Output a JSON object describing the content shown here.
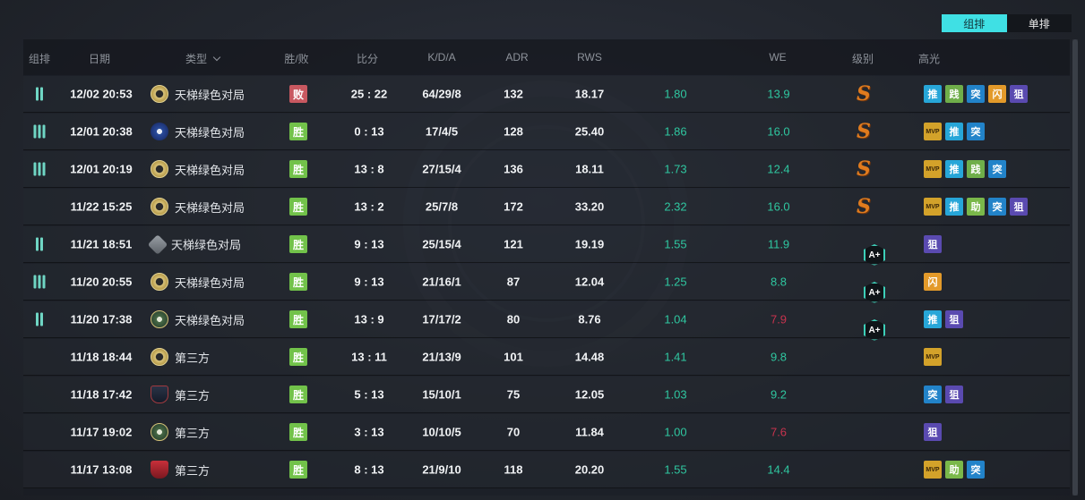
{
  "mode_toggle": {
    "team": "组排",
    "solo": "单排",
    "active": "team"
  },
  "headers": {
    "group": "组排",
    "date": "日期",
    "type": "类型",
    "result": "胜/败",
    "score": "比分",
    "kda": "K/D/A",
    "adr": "ADR",
    "rws": "RWS",
    "rating": "",
    "we": "WE",
    "rank": "级别",
    "highlights": "高光"
  },
  "icon_map": {
    "push": "推",
    "ace": "践",
    "assault": "突",
    "flash": "闪",
    "snipe": "狙",
    "assist": "助",
    "mvp": "MVP"
  },
  "matches": [
    {
      "group_bars": 2,
      "date": "12/02 20:53",
      "emblem": "gold",
      "type": "天梯绿色对局",
      "result": "败",
      "win": false,
      "score": "25 : 22",
      "kda": "64/29/8",
      "adr": "132",
      "rws": "18.17",
      "rating": "1.80",
      "we": "13.9",
      "we_low": false,
      "rank": "S",
      "highlights": [
        "push",
        "ace",
        "assault",
        "flash",
        "snipe"
      ]
    },
    {
      "group_bars": 3,
      "date": "12/01 20:38",
      "emblem": "blue",
      "type": "天梯绿色对局",
      "result": "胜",
      "win": true,
      "score": "0 : 13",
      "kda": "17/4/5",
      "adr": "128",
      "rws": "25.40",
      "rating": "1.86",
      "we": "16.0",
      "we_low": false,
      "rank": "S",
      "highlights": [
        "mvp",
        "push",
        "assault"
      ]
    },
    {
      "group_bars": 3,
      "date": "12/01 20:19",
      "emblem": "gold",
      "type": "天梯绿色对局",
      "result": "胜",
      "win": true,
      "score": "13 : 8",
      "kda": "27/15/4",
      "adr": "136",
      "rws": "18.11",
      "rating": "1.73",
      "we": "12.4",
      "we_low": false,
      "rank": "S",
      "highlights": [
        "mvp",
        "push",
        "ace",
        "assault"
      ]
    },
    {
      "group_bars": 0,
      "date": "11/22 15:25",
      "emblem": "gold",
      "type": "天梯绿色对局",
      "result": "胜",
      "win": true,
      "score": "13 : 2",
      "kda": "25/7/8",
      "adr": "172",
      "rws": "33.20",
      "rating": "2.32",
      "we": "16.0",
      "we_low": false,
      "rank": "S",
      "highlights": [
        "mvp",
        "push",
        "assist",
        "assault",
        "snipe"
      ]
    },
    {
      "group_bars": 2,
      "date": "11/21 18:51",
      "emblem": "grey",
      "type": "天梯绿色对局",
      "result": "胜",
      "win": true,
      "score": "9 : 13",
      "kda": "25/15/4",
      "adr": "121",
      "rws": "19.19",
      "rating": "1.55",
      "we": "11.9",
      "we_low": false,
      "rank": "A+",
      "highlights": [
        "snipe"
      ]
    },
    {
      "group_bars": 3,
      "date": "11/20 20:55",
      "emblem": "gold",
      "type": "天梯绿色对局",
      "result": "胜",
      "win": true,
      "score": "9 : 13",
      "kda": "21/16/1",
      "adr": "87",
      "rws": "12.04",
      "rating": "1.25",
      "we": "8.8",
      "we_low": false,
      "rank": "A+",
      "highlights": [
        "flash"
      ]
    },
    {
      "group_bars": 2,
      "date": "11/20 17:38",
      "emblem": "green",
      "type": "天梯绿色对局",
      "result": "胜",
      "win": true,
      "score": "13 : 9",
      "kda": "17/17/2",
      "adr": "80",
      "rws": "8.76",
      "rating": "1.04",
      "we": "7.9",
      "we_low": true,
      "rank": "A+",
      "highlights": [
        "push",
        "snipe"
      ]
    },
    {
      "group_bars": 0,
      "date": "11/18 18:44",
      "emblem": "gold",
      "type": "第三方",
      "result": "胜",
      "win": true,
      "score": "13 : 11",
      "kda": "21/13/9",
      "adr": "101",
      "rws": "14.48",
      "rating": "1.41",
      "we": "9.8",
      "we_low": false,
      "rank": "",
      "highlights": [
        "mvp"
      ]
    },
    {
      "group_bars": 0,
      "date": "11/18 17:42",
      "emblem": "darkshield",
      "type": "第三方",
      "result": "胜",
      "win": true,
      "score": "5 : 13",
      "kda": "15/10/1",
      "adr": "75",
      "rws": "12.05",
      "rating": "1.03",
      "we": "9.2",
      "we_low": false,
      "rank": "",
      "highlights": [
        "assault",
        "snipe"
      ]
    },
    {
      "group_bars": 0,
      "date": "11/17 19:02",
      "emblem": "green",
      "type": "第三方",
      "result": "胜",
      "win": true,
      "score": "3 : 13",
      "kda": "10/10/5",
      "adr": "70",
      "rws": "11.84",
      "rating": "1.00",
      "we": "7.6",
      "we_low": true,
      "rank": "",
      "highlights": [
        "snipe"
      ]
    },
    {
      "group_bars": 0,
      "date": "11/17 13:08",
      "emblem": "redshield",
      "type": "第三方",
      "result": "胜",
      "win": true,
      "score": "8 : 13",
      "kda": "21/9/10",
      "adr": "118",
      "rws": "20.20",
      "rating": "1.55",
      "we": "14.4",
      "we_low": false,
      "rank": "",
      "highlights": [
        "mvp",
        "assist",
        "assault"
      ]
    }
  ]
}
